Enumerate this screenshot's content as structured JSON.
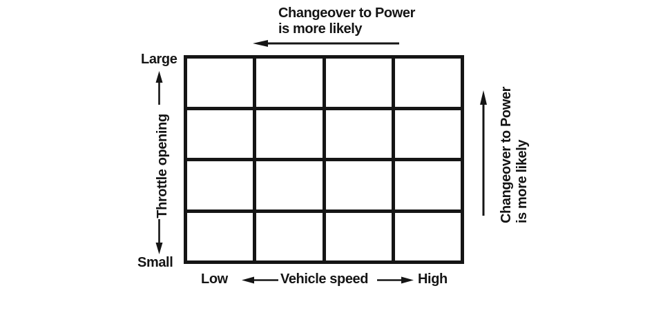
{
  "diagram": {
    "top_annotation": {
      "line1": "Changeover to Power",
      "line2": "is more likely"
    },
    "right_annotation": {
      "line1": "Changeover to Power",
      "line2": "is more likely"
    },
    "y_axis": {
      "top_label": "Large",
      "label": "Throttle opening",
      "bottom_label": "Small"
    },
    "x_axis": {
      "left_label": "Low",
      "label": "Vehicle speed",
      "right_label": "High"
    },
    "grid": {
      "rows": 4,
      "columns": 4
    },
    "colors": {
      "ink": "#151515",
      "background": "#ffffff"
    }
  },
  "chart_data": {
    "type": "heatmap",
    "rows": 4,
    "columns": 4,
    "cell_values": "empty (conceptual map, no plotted data)",
    "xlabel": "Vehicle speed",
    "x_range_labels": [
      "Low",
      "High"
    ],
    "ylabel": "Throttle opening",
    "y_range_labels": [
      "Small",
      "Large"
    ],
    "annotations": [
      {
        "text": "Changeover to Power is more likely",
        "position": "top",
        "arrow_direction": "left"
      },
      {
        "text": "Changeover to Power is more likely",
        "position": "right",
        "arrow_direction": "up"
      }
    ],
    "grid": "on"
  }
}
